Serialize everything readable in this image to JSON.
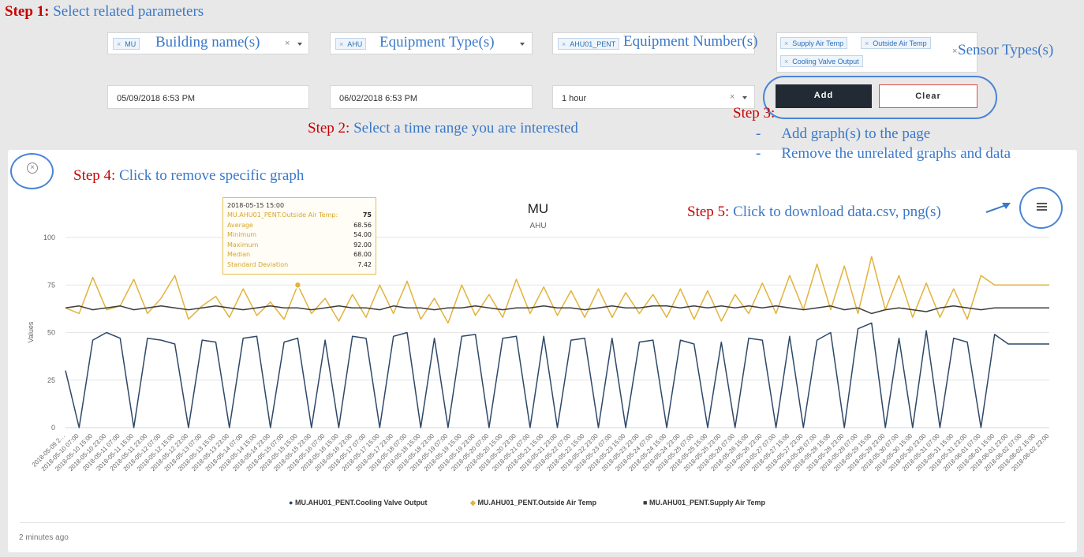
{
  "steps": {
    "step1": {
      "label": "Step 1:",
      "text": "Select related parameters"
    },
    "step2": {
      "label": "Step 2:",
      "text": "Select a time range you are interested"
    },
    "step3": {
      "label": "Step 3:",
      "dash": "-",
      "line1": "Add graph(s) to the page",
      "line2": "Remove the unrelated graphs and data"
    },
    "step4": {
      "label": "Step 4:",
      "text": "Click to remove specific graph"
    },
    "step5": {
      "label": "Step 5:",
      "text": "Click to download data.csv, png(s)"
    }
  },
  "filters": {
    "building": {
      "tag": "MU",
      "label": "Building name(s)"
    },
    "equipment_type": {
      "tag": "AHU",
      "label": "Equipment Type(s)"
    },
    "equipment_number": {
      "tag": "AHU01_PENT",
      "label": "Equipment Number(s)"
    },
    "sensor_types": {
      "tags": [
        "Supply Air Temp",
        "Outside Air Temp",
        "Cooling Valve Output"
      ],
      "label": "Sensor Types(s)"
    },
    "remove_symbol": "×"
  },
  "time": {
    "start": "05/09/2018 6:53 PM",
    "end": "06/02/2018 6:53 PM",
    "interval": "1 hour"
  },
  "buttons": {
    "add": "Add",
    "clear": "Clear"
  },
  "chart_card": {
    "footer": "2 minutes ago"
  },
  "tooltip": {
    "date": "2018-05-15 15:00",
    "rows": [
      {
        "k": "MU.AHU01_PENT.Outside Air Temp:",
        "v": "75"
      },
      {
        "k": "Average",
        "v": "68.56"
      },
      {
        "k": "Minimum",
        "v": "54.00"
      },
      {
        "k": "Maximum",
        "v": "92.00"
      },
      {
        "k": "Median",
        "v": "68.00"
      },
      {
        "k": "Standard Deviation",
        "v": "7.42"
      }
    ]
  },
  "colors": {
    "cooling": "#2e4868",
    "outside": "#e2b33c",
    "supply": "#3c3c3c",
    "step_red": "#c80000",
    "step_blue": "#3a78c8",
    "button_dark": "#222a33",
    "clear_border": "#e24a4a"
  },
  "icons": {
    "remove": "close-circle-icon",
    "menu": "hamburger-menu-icon"
  },
  "chart_data": {
    "type": "line",
    "title": "MU",
    "subtitle": "AHU",
    "ylabel": "Values",
    "ylim": [
      0,
      100
    ],
    "yticks": [
      0,
      25,
      50,
      75,
      100
    ],
    "grid": true,
    "legend": "bottom-center",
    "x": [
      "2018-05-09 2…",
      "2018-05-10 07:00",
      "2018-05-10 15:00",
      "2018-05-10 23:00",
      "2018-05-11 07:00",
      "2018-05-11 15:00",
      "2018-05-11 23:00",
      "2018-05-12 07:00",
      "2018-05-12 15:00",
      "2018-05-12 23:00",
      "2018-05-13 07:00",
      "2018-05-13 15:00",
      "2018-05-13 23:00",
      "2018-05-14 07:00",
      "2018-05-14 15:00",
      "2018-05-14 23:00",
      "2018-05-15 07:00",
      "2018-05-15 15:00",
      "2018-05-15 23:00",
      "2018-05-16 07:00",
      "2018-05-16 15:00",
      "2018-05-16 23:00",
      "2018-05-17 07:00",
      "2018-05-17 15:00",
      "2018-05-17 23:00",
      "2018-05-18 07:00",
      "2018-05-18 15:00",
      "2018-05-18 23:00",
      "2018-05-19 07:00",
      "2018-05-19 15:00",
      "2018-05-19 23:00",
      "2018-05-20 07:00",
      "2018-05-20 15:00",
      "2018-05-20 23:00",
      "2018-05-21 07:00",
      "2018-05-21 15:00",
      "2018-05-21 23:00",
      "2018-05-22 07:00",
      "2018-05-22 15:00",
      "2018-05-22 23:00",
      "2018-05-23 07:00",
      "2018-05-23 15:00",
      "2018-05-23 23:00",
      "2018-05-24 07:00",
      "2018-05-24 15:00",
      "2018-05-24 23:00",
      "2018-05-25 07:00",
      "2018-05-25 15:00",
      "2018-05-25 23:00",
      "2018-05-26 07:00",
      "2018-05-26 15:00",
      "2018-05-26 23:00",
      "2018-05-27 07:00",
      "2018-05-27 15:00",
      "2018-05-27 23:00",
      "2018-05-28 07:00",
      "2018-05-28 15:00",
      "2018-05-28 23:00",
      "2018-05-29 07:00",
      "2018-05-29 15:00",
      "2018-05-29 23:00",
      "2018-05-30 07:00",
      "2018-05-30 15:00",
      "2018-05-30 23:00",
      "2018-05-31 07:00",
      "2018-05-31 15:00",
      "2018-05-31 23:00",
      "2018-06-01 07:00",
      "2018-06-01 15:00",
      "2018-06-01 23:00",
      "2018-06-02 07:00",
      "2018-06-02 15:00",
      "2018-06-02 23:00"
    ],
    "series": [
      {
        "name": "MU.AHU01_PENT.Cooling Valve Output",
        "color": "#2e4868",
        "values": [
          30,
          0,
          46,
          50,
          47,
          0,
          47,
          46,
          44,
          0,
          46,
          45,
          0,
          47,
          48,
          0,
          45,
          47,
          0,
          46,
          0,
          48,
          47,
          0,
          48,
          50,
          0,
          47,
          0,
          48,
          49,
          0,
          47,
          48,
          0,
          48,
          0,
          46,
          47,
          0,
          47,
          0,
          45,
          46,
          0,
          46,
          44,
          0,
          45,
          0,
          47,
          46,
          0,
          48,
          0,
          46,
          50,
          0,
          52,
          55,
          0,
          47,
          0,
          51,
          0,
          47,
          45,
          0,
          49,
          44,
          44,
          44,
          44
        ]
      },
      {
        "name": "MU.AHU01_PENT.Outside Air Temp",
        "color": "#e2b33c",
        "values": [
          63,
          60,
          79,
          62,
          64,
          78,
          60,
          68,
          80,
          57,
          64,
          69,
          58,
          73,
          59,
          66,
          57,
          75,
          60,
          68,
          56,
          70,
          58,
          75,
          60,
          77,
          57,
          68,
          55,
          75,
          59,
          70,
          58,
          78,
          60,
          74,
          59,
          72,
          58,
          73,
          58,
          71,
          60,
          70,
          58,
          73,
          57,
          72,
          56,
          70,
          60,
          76,
          60,
          80,
          62,
          86,
          62,
          85,
          60,
          90,
          62,
          80,
          58,
          76,
          58,
          73,
          57,
          80,
          75,
          75,
          75,
          75,
          75
        ]
      },
      {
        "name": "MU.AHU01_PENT.Supply Air Temp",
        "color": "#3c3c3c",
        "values": [
          63,
          64,
          62,
          63,
          64,
          62,
          63,
          64,
          63,
          62,
          63,
          64,
          63,
          62,
          63,
          64,
          63,
          63,
          62,
          63,
          64,
          63,
          63,
          62,
          64,
          63,
          63,
          62,
          63,
          63,
          64,
          63,
          62,
          63,
          63,
          64,
          63,
          63,
          62,
          63,
          64,
          63,
          63,
          64,
          64,
          63,
          64,
          63,
          64,
          63,
          64,
          63,
          64,
          63,
          62,
          63,
          64,
          62,
          63,
          60,
          62,
          63,
          62,
          61,
          63,
          64,
          63,
          62,
          63,
          63,
          63,
          63,
          63
        ]
      }
    ]
  }
}
